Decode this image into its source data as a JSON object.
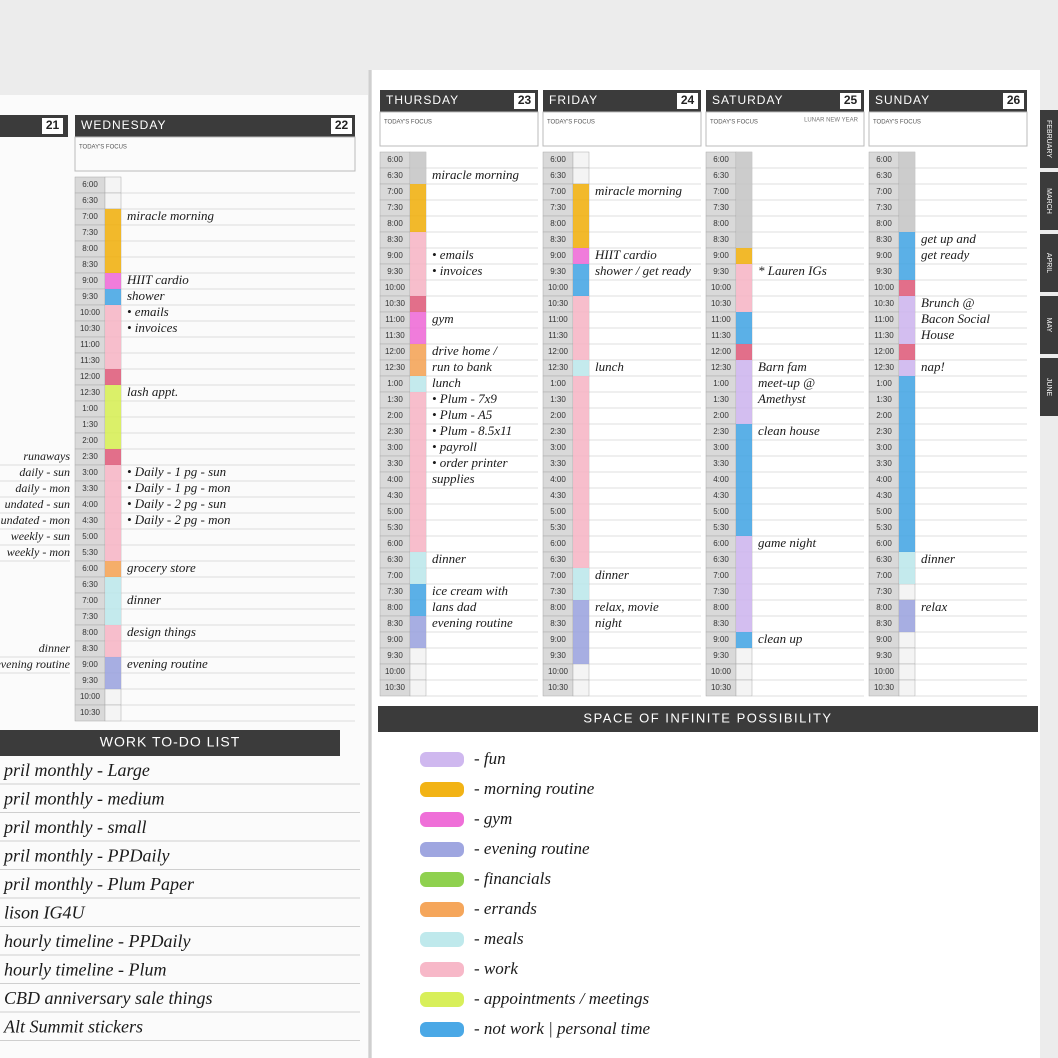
{
  "times": [
    "6:00",
    "6:30",
    "7:00",
    "7:30",
    "8:00",
    "8:30",
    "9:00",
    "9:30",
    "10:00",
    "10:30",
    "11:00",
    "11:30",
    "12:00",
    "12:30",
    "1:00",
    "1:30",
    "2:00",
    "2:30",
    "3:00",
    "3:30",
    "4:00",
    "4:30",
    "5:00",
    "5:30",
    "6:00",
    "6:30",
    "7:00",
    "7:30",
    "8:00",
    "8:30",
    "9:00",
    "9:30",
    "10:00",
    "10:30"
  ],
  "focus_label": "TODAY'S FOCUS",
  "left_page": {
    "partial_day_number": "21",
    "partial_notes": [
      {
        "time": "2:30",
        "text": "runaways"
      },
      {
        "time": "3:00",
        "text": "daily - sun"
      },
      {
        "time": "3:30",
        "text": "daily - mon"
      },
      {
        "time": "4:00",
        "text": "undated - sun"
      },
      {
        "time": "4:30",
        "text": "undated - mon"
      },
      {
        "time": "5:00",
        "text": "weekly - sun"
      },
      {
        "time": "5:30",
        "text": "weekly - mon"
      },
      {
        "time": "8:30",
        "text": "dinner"
      },
      {
        "time": "9:00",
        "text": "evening routine"
      }
    ],
    "day": {
      "name": "WEDNESDAY",
      "number": "22",
      "blocks": [
        {
          "start": "7:00",
          "end": "9:00",
          "color": "#f2b315"
        },
        {
          "start": "9:00",
          "end": "9:30",
          "color": "#ef6fd8"
        },
        {
          "start": "9:30",
          "end": "10:00",
          "color": "#4aa8e6"
        },
        {
          "start": "10:00",
          "end": "12:00",
          "color": "#f7b8c8"
        },
        {
          "start": "12:00",
          "end": "12:30",
          "color": "#e0607e"
        },
        {
          "start": "12:30",
          "end": "2:30",
          "color": "#d8ef5a"
        },
        {
          "start": "2:30",
          "end": "3:00",
          "color": "#e0607e"
        },
        {
          "start": "3:00",
          "end": "6:00",
          "color": "#f7b8c8"
        },
        {
          "start": "6:00",
          "end": "6:30",
          "color": "#f5a65b"
        },
        {
          "start": "6:30",
          "end": "7:30",
          "color": "#bfe9ec"
        },
        {
          "start": "7:30",
          "end": "8:00",
          "color": "#bfe9ec"
        },
        {
          "start": "8:00",
          "end": "9:00",
          "color": "#f7b8c8"
        },
        {
          "start": "9:00",
          "end": "10:00",
          "color": "#9fa6e0"
        }
      ],
      "entries": [
        {
          "time": "7:00",
          "text": "miracle morning"
        },
        {
          "time": "9:00",
          "text": "HIIT cardio"
        },
        {
          "time": "9:30",
          "text": "shower"
        },
        {
          "time": "10:00",
          "text": "• emails"
        },
        {
          "time": "10:30",
          "text": "• invoices"
        },
        {
          "time": "12:30",
          "text": "lash appt."
        },
        {
          "time": "3:00",
          "text": "• Daily - 1 pg - sun"
        },
        {
          "time": "3:30",
          "text": "• Daily - 1 pg - mon"
        },
        {
          "time": "4:00",
          "text": "• Daily - 2 pg - sun"
        },
        {
          "time": "4:30",
          "text": "• Daily - 2 pg - mon"
        },
        {
          "time": "6:00",
          "text": "grocery store"
        },
        {
          "time": "7:00",
          "text": "dinner"
        },
        {
          "time": "8:00",
          "text": "design things"
        },
        {
          "time": "9:00",
          "text": "evening routine"
        }
      ]
    },
    "todo": {
      "title": "WORK TO-DO LIST",
      "items": [
        "pril monthly - Large",
        "pril monthly - medium",
        "pril monthly - small",
        "pril monthly - PPDaily",
        "pril monthly - Plum Paper",
        "lison IG4U",
        "hourly timeline - PPDaily",
        "hourly timeline - Plum",
        "CBD anniversary sale things",
        "Alt Summit stickers"
      ]
    }
  },
  "right_page": {
    "days": [
      {
        "name": "THURSDAY",
        "number": "23",
        "blocks": [
          {
            "start": "6:00",
            "end": "7:00",
            "color": "#c8c8c8"
          },
          {
            "start": "7:00",
            "end": "8:30",
            "color": "#f2b315"
          },
          {
            "start": "8:30",
            "end": "10:30",
            "color": "#f7b8c8"
          },
          {
            "start": "10:30",
            "end": "11:00",
            "color": "#e0607e"
          },
          {
            "start": "11:00",
            "end": "12:00",
            "color": "#ef6fd8"
          },
          {
            "start": "12:00",
            "end": "1:00",
            "color": "#f5a65b"
          },
          {
            "start": "1:00",
            "end": "1:30",
            "color": "#bfe9ec"
          },
          {
            "start": "1:30",
            "end": "6:30",
            "color": "#f7b8c8"
          },
          {
            "start": "6:30",
            "end": "7:30",
            "color": "#bfe9ec"
          },
          {
            "start": "7:30",
            "end": "8:30",
            "color": "#4aa8e6"
          },
          {
            "start": "8:30",
            "end": "9:30",
            "color": "#9fa6e0"
          }
        ],
        "entries": [
          {
            "time": "6:30",
            "text": "miracle morning"
          },
          {
            "time": "9:00",
            "text": "• emails"
          },
          {
            "time": "9:30",
            "text": "• invoices"
          },
          {
            "time": "11:00",
            "text": "gym"
          },
          {
            "time": "12:00",
            "text": "drive home /"
          },
          {
            "time": "12:30",
            "text": "run to bank"
          },
          {
            "time": "1:00",
            "text": "lunch"
          },
          {
            "time": "1:30",
            "text": "• Plum - 7x9"
          },
          {
            "time": "2:00",
            "text": "• Plum - A5"
          },
          {
            "time": "2:30",
            "text": "• Plum - 8.5x11"
          },
          {
            "time": "3:00",
            "text": "• payroll"
          },
          {
            "time": "3:30",
            "text": "• order printer"
          },
          {
            "time": "4:00",
            "text": "supplies"
          },
          {
            "time": "6:30",
            "text": "dinner"
          },
          {
            "time": "7:30",
            "text": "ice cream with"
          },
          {
            "time": "8:00",
            "text": "lans dad"
          },
          {
            "time": "8:30",
            "text": "evening routine"
          }
        ]
      },
      {
        "name": "FRIDAY",
        "number": "24",
        "blocks": [
          {
            "start": "7:00",
            "end": "9:00",
            "color": "#f2b315"
          },
          {
            "start": "9:00",
            "end": "9:30",
            "color": "#ef6fd8"
          },
          {
            "start": "9:30",
            "end": "10:30",
            "color": "#4aa8e6"
          },
          {
            "start": "10:30",
            "end": "12:30",
            "color": "#f7b8c8"
          },
          {
            "start": "12:30",
            "end": "1:00",
            "color": "#bfe9ec"
          },
          {
            "start": "1:00",
            "end": "7:00",
            "color": "#f7b8c8"
          },
          {
            "start": "7:00",
            "end": "8:00",
            "color": "#bfe9ec"
          },
          {
            "start": "8:00",
            "end": "10:00",
            "color": "#9fa6e0"
          }
        ],
        "entries": [
          {
            "time": "7:00",
            "text": "miracle morning"
          },
          {
            "time": "9:00",
            "text": "HIIT cardio"
          },
          {
            "time": "9:30",
            "text": "shower / get ready"
          },
          {
            "time": "12:30",
            "text": "lunch"
          },
          {
            "time": "7:00",
            "text": "dinner"
          },
          {
            "time": "8:00",
            "text": "relax, movie"
          },
          {
            "time": "8:30",
            "text": "night"
          }
        ]
      },
      {
        "name": "SATURDAY",
        "number": "25",
        "note": "LUNAR NEW YEAR",
        "blocks": [
          {
            "start": "6:00",
            "end": "9:00",
            "color": "#c8c8c8"
          },
          {
            "start": "9:00",
            "end": "9:30",
            "color": "#f2b315"
          },
          {
            "start": "9:30",
            "end": "11:00",
            "color": "#f7b8c8"
          },
          {
            "start": "11:00",
            "end": "12:00",
            "color": "#4aa8e6"
          },
          {
            "start": "12:00",
            "end": "12:30",
            "color": "#e0607e"
          },
          {
            "start": "12:30",
            "end": "2:30",
            "color": "#cfb8ef"
          },
          {
            "start": "2:30",
            "end": "6:00",
            "color": "#4aa8e6"
          },
          {
            "start": "6:00",
            "end": "9:00",
            "color": "#cfb8ef"
          },
          {
            "start": "9:00",
            "end": "9:30",
            "color": "#4aa8e6"
          }
        ],
        "entries": [
          {
            "time": "9:30",
            "text": "* Lauren IGs"
          },
          {
            "time": "12:30",
            "text": "Barn fam"
          },
          {
            "time": "1:00",
            "text": "meet-up @"
          },
          {
            "time": "1:30",
            "text": "Amethyst"
          },
          {
            "time": "2:30",
            "text": "clean house"
          },
          {
            "time": "6:00",
            "text": "game night"
          },
          {
            "time": "9:00",
            "text": "clean up"
          }
        ]
      },
      {
        "name": "SUNDAY",
        "number": "26",
        "blocks": [
          {
            "start": "6:00",
            "end": "8:30",
            "color": "#c8c8c8"
          },
          {
            "start": "8:30",
            "end": "10:00",
            "color": "#4aa8e6"
          },
          {
            "start": "10:00",
            "end": "10:30",
            "color": "#e0607e"
          },
          {
            "start": "10:30",
            "end": "12:00",
            "color": "#cfb8ef"
          },
          {
            "start": "12:00",
            "end": "12:30",
            "color": "#e0607e"
          },
          {
            "start": "12:30",
            "end": "1:00",
            "color": "#cfb8ef"
          },
          {
            "start": "1:00",
            "end": "6:30",
            "color": "#4aa8e6"
          },
          {
            "start": "6:30",
            "end": "7:30",
            "color": "#bfe9ec"
          },
          {
            "start": "8:00",
            "end": "9:00",
            "color": "#9fa6e0"
          }
        ],
        "entries": [
          {
            "time": "8:30",
            "text": "get up and"
          },
          {
            "time": "9:00",
            "text": "get ready"
          },
          {
            "time": "10:30",
            "text": "Brunch @"
          },
          {
            "time": "11:00",
            "text": "Bacon Social"
          },
          {
            "time": "11:30",
            "text": "House"
          },
          {
            "time": "12:30",
            "text": "nap!"
          },
          {
            "time": "6:30",
            "text": "dinner"
          },
          {
            "time": "8:00",
            "text": "relax"
          }
        ]
      }
    ],
    "space_title": "SPACE OF INFINITE POSSIBILITY",
    "legend": [
      {
        "label": "- fun",
        "color": "#cfb8ef"
      },
      {
        "label": "- morning routine",
        "color": "#f2b315"
      },
      {
        "label": "- gym",
        "color": "#ef6fd8"
      },
      {
        "label": "- evening routine",
        "color": "#9fa6e0"
      },
      {
        "label": "- financials",
        "color": "#8fd14f"
      },
      {
        "label": "- errands",
        "color": "#f5a65b"
      },
      {
        "label": "- meals",
        "color": "#bfe9ec"
      },
      {
        "label": "- work",
        "color": "#f7b8c8"
      },
      {
        "label": "- appointments / meetings",
        "color": "#d8ef5a"
      },
      {
        "label": "- not work | personal time",
        "color": "#4aa8e6"
      }
    ]
  },
  "tabs": [
    "FEBRUARY",
    "MARCH",
    "APRIL",
    "MAY",
    "JUNE"
  ]
}
